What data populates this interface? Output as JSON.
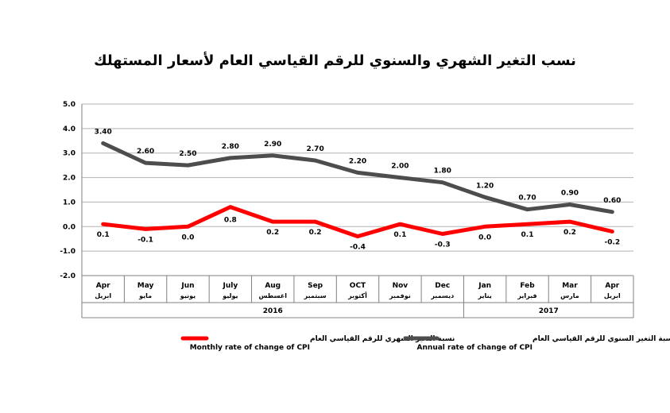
{
  "chart_data": {
    "type": "line",
    "title": "نسب التغير الشهري والسنوي للرقم القياسي العام لأسعار المستهلك",
    "ylim": [
      -2.0,
      5.0
    ],
    "yticks": [
      "5.0",
      "4.0",
      "3.0",
      "2.0",
      "1.0",
      "0.0",
      "-1.0",
      "-2.0"
    ],
    "grid": true,
    "categories_en": [
      "Apr",
      "May",
      "Jun",
      "July",
      "Aug",
      "Sep",
      "OCT",
      "Nov",
      "Dec",
      "Jan",
      "Feb",
      "Mar",
      "Apr"
    ],
    "categories_ar": [
      "ابريل",
      "مايو",
      "يونيو",
      "يوليو",
      "اغسطس",
      "سبتمبر",
      "أكتوبر",
      "نوفمبر",
      "ديسمبر",
      "يناير",
      "فبراير",
      "مارس",
      "ابريل"
    ],
    "year_groups": [
      {
        "label": "2016",
        "start": 0,
        "end": 8
      },
      {
        "label": "2017",
        "start": 9,
        "end": 12
      }
    ],
    "series": [
      {
        "name": "Annual rate of change of CPI",
        "name_ar": "نسبة التغير السنوي للرقم القياسي العام",
        "color": "#4d4d4d",
        "values": [
          3.4,
          2.6,
          2.5,
          2.8,
          2.9,
          2.7,
          2.2,
          2.0,
          1.8,
          1.2,
          0.7,
          0.9,
          0.6
        ],
        "labels": [
          "3.40",
          "2.60",
          "2.50",
          "2.80",
          "2.90",
          "2.70",
          "2.20",
          "2.00",
          "1.80",
          "1.20",
          "0.70",
          "0.90",
          "0.60"
        ]
      },
      {
        "name": "Monthly rate of change of CPI",
        "name_ar": "نسبة التغير الشهري للرقم القياسي العام",
        "color": "#ff0000",
        "values": [
          0.1,
          -0.1,
          0.0,
          0.8,
          0.2,
          0.2,
          -0.4,
          0.1,
          -0.3,
          0.0,
          0.1,
          0.2,
          -0.2
        ],
        "labels": [
          "0.1",
          "-0.1",
          "0.0",
          "0.8",
          "0.2",
          "0.2",
          "-0.4",
          "0.1",
          "-0.3",
          "0.0",
          "0.1",
          "0.2",
          "-0.2"
        ]
      }
    ]
  }
}
